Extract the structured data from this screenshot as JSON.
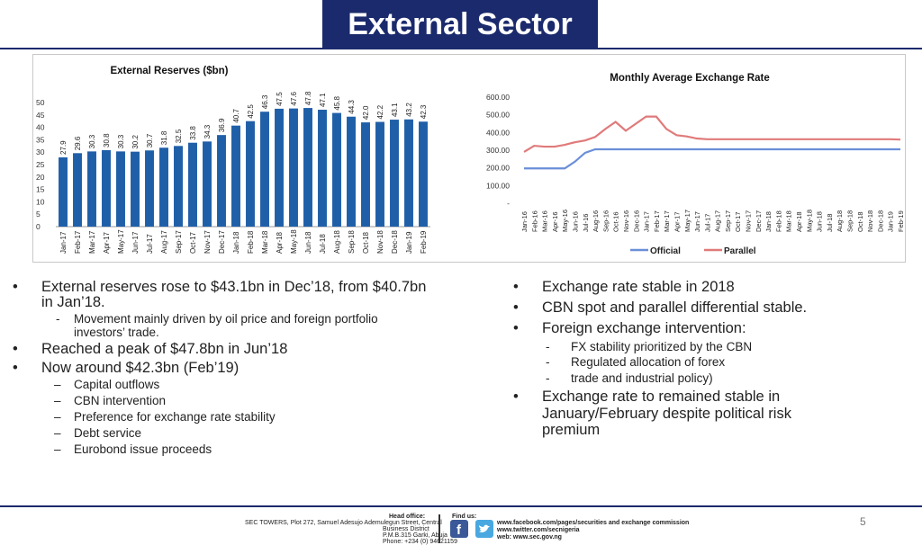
{
  "title": "External Sector",
  "chart_data": [
    {
      "type": "bar",
      "title": "External Reserves ($bn)",
      "categories": [
        "Jan-17",
        "Feb-17",
        "Mar-17",
        "Apr-17",
        "May-17",
        "Jun-17",
        "Jul-17",
        "Aug-17",
        "Sep-17",
        "Oct-17",
        "Nov-17",
        "Dec-17",
        "Jan-18",
        "Feb-18",
        "Mar-18",
        "Apr-18",
        "May-18",
        "Jun-18",
        "Jul-18",
        "Aug-18",
        "Sep-18",
        "Oct-18",
        "Nov-18",
        "Dec-18",
        "Jan-19",
        "Feb-19"
      ],
      "values": [
        27.9,
        29.6,
        30.3,
        30.8,
        30.3,
        30.2,
        30.7,
        31.8,
        32.5,
        33.8,
        34.3,
        36.9,
        40.7,
        42.5,
        46.3,
        47.5,
        47.6,
        47.8,
        47.1,
        45.8,
        44.3,
        42.0,
        42.2,
        43.1,
        43.2,
        42.3
      ],
      "ylim": [
        0,
        50
      ],
      "yticks": [
        "0",
        "5",
        "10",
        "15",
        "20",
        "25",
        "30",
        "35",
        "40",
        "45",
        "50"
      ],
      "color": "#1f5fa8"
    },
    {
      "type": "line",
      "title": "Monthly Average Exchange Rate",
      "x": [
        "Jan-16",
        "Feb-16",
        "Mar-16",
        "Apr-16",
        "May-16",
        "Jun-16",
        "Jul-16",
        "Aug-16",
        "Sep-16",
        "Oct-16",
        "Nov-16",
        "Dec-16",
        "Jan-17",
        "Feb-17",
        "Mar-17",
        "Apr-17",
        "May-17",
        "Jun-17",
        "Jul-17",
        "Aug-17",
        "Sep-17",
        "Oct-17",
        "Nov-17",
        "Dec-17",
        "Jan-18",
        "Feb-18",
        "Mar-18",
        "Apr-18",
        "May-18",
        "Jun-18",
        "Jul-18",
        "Aug-18",
        "Sep-18",
        "Oct-18",
        "Nov-18",
        "Dec-18",
        "Jan-19",
        "Feb-19"
      ],
      "series": [
        {
          "name": "Official",
          "color": "#6a8fd8",
          "values": [
            197,
            197,
            197,
            197,
            197,
            235,
            285,
            305,
            305,
            305,
            305,
            305,
            305,
            305,
            305,
            305,
            305,
            305,
            305,
            305,
            305,
            305,
            305,
            305,
            305,
            305,
            305,
            305,
            305,
            305,
            305,
            305,
            305,
            305,
            305,
            305,
            305,
            305
          ]
        },
        {
          "name": "Parallel",
          "color": "#e07a7a",
          "values": [
            290,
            325,
            320,
            320,
            330,
            345,
            355,
            375,
            420,
            460,
            410,
            450,
            490,
            490,
            420,
            385,
            378,
            366,
            362,
            362,
            362,
            362,
            362,
            362,
            362,
            362,
            362,
            362,
            362,
            362,
            362,
            362,
            362,
            362,
            362,
            362,
            362,
            360
          ]
        }
      ],
      "ylim": [
        0,
        600
      ],
      "yticks": [
        "-",
        "100.00",
        "200.00",
        "300.00",
        "400.00",
        "500.00",
        "600.00"
      ],
      "legend": "bottom"
    }
  ],
  "left_bullets": [
    {
      "level": 1,
      "mark": "•",
      "text": "External reserves rose to $43.1bn in Dec’18, from $40.7bn"
    },
    {
      "level": 1,
      "mark": "",
      "text": "in Jan’18."
    },
    {
      "level": 2,
      "mark": "-",
      "text": "Movement mainly driven by oil price and foreign portfolio"
    },
    {
      "level": 2,
      "mark": "",
      "text": "investors’ trade."
    },
    {
      "level": 1,
      "mark": "•",
      "text": "Reached a peak of $47.8bn in Jun’18"
    },
    {
      "level": 1,
      "mark": "•",
      "text": "Now around $42.3bn (Feb’19)"
    },
    {
      "level": 3,
      "mark": "–",
      "text": "Capital outflows"
    },
    {
      "level": 3,
      "mark": "–",
      "text": "CBN intervention"
    },
    {
      "level": 3,
      "mark": "–",
      "text": "Preference for exchange rate stability"
    },
    {
      "level": 3,
      "mark": "–",
      "text": "Debt service"
    },
    {
      "level": 3,
      "mark": "–",
      "text": "Eurobond issue proceeds"
    }
  ],
  "right_bullets": [
    {
      "level": 1,
      "mark": "•",
      "text": "Exchange rate stable in 2018"
    },
    {
      "level": 1,
      "mark": "•",
      "text": "CBN spot and parallel differential stable."
    },
    {
      "level": 1,
      "mark": "•",
      "text": "Foreign exchange intervention:"
    },
    {
      "level": 2,
      "mark": "-",
      "text": "FX stability prioritized by the CBN"
    },
    {
      "level": 2,
      "mark": "-",
      "text": "Regulated allocation of forex"
    },
    {
      "level": 2,
      "mark": "-",
      "text": "trade and industrial policy)"
    },
    {
      "level": 1,
      "mark": "•",
      "text": "Exchange rate to remained stable in"
    },
    {
      "level": 1,
      "mark": "",
      "text": "January/February despite political risk"
    },
    {
      "level": 1,
      "mark": "",
      "text": "premium"
    }
  ],
  "footer": {
    "head_office_label": "Head office:",
    "address_line1": "SEC TOWERS, Plot 272, Samuel Adesujo Ademulegun Street, Central",
    "address_line2": "Business District",
    "address_line3": "P.M.B.315 Garki, Abuja",
    "phone": "Phone: +234 (0) 94621159",
    "find_us_label": "Find us:",
    "facebook_url": "www.facebook.com/pages/securities and exchange commission",
    "twitter_url": "www.twitter.com/secnigeria",
    "web_url": "web: www.sec.gov.ng",
    "page_number": "5",
    "facebook_icon": "facebook-icon",
    "twitter_icon": "twitter-icon"
  }
}
